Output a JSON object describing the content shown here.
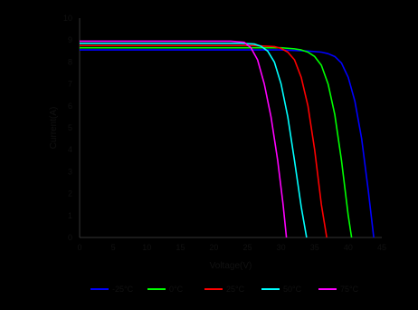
{
  "chart_data": {
    "type": "line",
    "title": "",
    "xlabel": "Voltage(V)",
    "ylabel": "Current(A)",
    "xlim": [
      0,
      45
    ],
    "ylim": [
      0,
      10
    ],
    "x_ticks": [
      "0",
      "5",
      "10",
      "15",
      "20",
      "25",
      "30",
      "35",
      "40",
      "45"
    ],
    "y_ticks": [
      "0",
      "1",
      "2",
      "3",
      "4",
      "5",
      "6",
      "7",
      "8",
      "9",
      "10"
    ],
    "grid": false,
    "legend_position": "bottom",
    "background": "#000000",
    "series": [
      {
        "name": "-25°C",
        "color": "#0000ff",
        "x": [
          0,
          10,
          20,
          30,
          34,
          36,
          37,
          38,
          39,
          40,
          41,
          42,
          43,
          43.8
        ],
        "y": [
          8.55,
          8.55,
          8.55,
          8.55,
          8.5,
          8.45,
          8.38,
          8.25,
          7.95,
          7.3,
          6.2,
          4.5,
          2.1,
          0
        ]
      },
      {
        "name": "0°C",
        "color": "#00ff00",
        "x": [
          0,
          10,
          20,
          30,
          32,
          33,
          34,
          35,
          36,
          37,
          38,
          39,
          40,
          40.5
        ],
        "y": [
          8.65,
          8.65,
          8.65,
          8.65,
          8.6,
          8.55,
          8.45,
          8.25,
          7.85,
          7.0,
          5.6,
          3.5,
          1.0,
          0
        ]
      },
      {
        "name": "25°C",
        "color": "#ff0000",
        "x": [
          0,
          10,
          20,
          26,
          29,
          30,
          31,
          32,
          33,
          34,
          35,
          36,
          36.8
        ],
        "y": [
          8.75,
          8.75,
          8.75,
          8.75,
          8.7,
          8.62,
          8.45,
          8.1,
          7.3,
          6.0,
          4.0,
          1.5,
          0
        ]
      },
      {
        "name": "50°C",
        "color": "#00ffff",
        "x": [
          0,
          10,
          20,
          24,
          26,
          27,
          28,
          29,
          30,
          31,
          32,
          33,
          33.8
        ],
        "y": [
          8.85,
          8.85,
          8.85,
          8.85,
          8.82,
          8.72,
          8.5,
          8.0,
          7.0,
          5.5,
          3.5,
          1.4,
          0
        ]
      },
      {
        "name": "75°C",
        "color": "#ff00ff",
        "x": [
          0,
          10,
          20,
          22.5,
          24.5,
          25.5,
          26.5,
          27.5,
          28.5,
          29.5,
          30.3,
          30.8
        ],
        "y": [
          8.95,
          8.95,
          8.95,
          8.95,
          8.9,
          8.65,
          8.1,
          7.0,
          5.5,
          3.5,
          1.5,
          0
        ]
      }
    ]
  }
}
